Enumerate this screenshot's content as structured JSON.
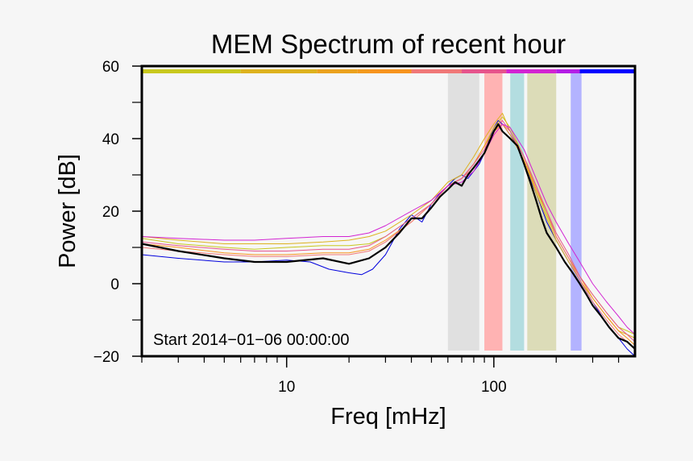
{
  "chart_data": {
    "type": "line",
    "title": "MEM Spectrum of recent hour",
    "xlabel": "Freq [mHz]",
    "ylabel": "Power [dB]",
    "x_scale": "log",
    "xlim": [
      2,
      480
    ],
    "ylim": [
      -20,
      60
    ],
    "x_ticks_labeled": [
      {
        "value": 10,
        "label": "10"
      },
      {
        "value": 100,
        "label": "100"
      }
    ],
    "x_ticks_minor": [
      2,
      3,
      4,
      5,
      6,
      7,
      8,
      9,
      20,
      30,
      40,
      50,
      60,
      70,
      80,
      90,
      200,
      300,
      400
    ],
    "y_ticks": [
      {
        "value": -20,
        "label": "−20"
      },
      {
        "value": 0,
        "label": "0"
      },
      {
        "value": 20,
        "label": "20"
      },
      {
        "value": 40,
        "label": "40"
      },
      {
        "value": 60,
        "label": "60"
      }
    ],
    "y_ticks_minor": [
      -10,
      10,
      30,
      50
    ],
    "annotation": "Start 2014−01−06 00:00:00",
    "bands": [
      {
        "from": 60,
        "to": 85,
        "color": "#e0e0e0"
      },
      {
        "from": 90,
        "to": 110,
        "color": "#ffb3b3"
      },
      {
        "from": 120,
        "to": 140,
        "color": "#b3dde0"
      },
      {
        "from": 145,
        "to": 200,
        "color": "#dcdcb8"
      },
      {
        "from": 235,
        "to": 265,
        "color": "#b3b3ff"
      }
    ],
    "color_bar": [
      {
        "from": 2,
        "to": 6,
        "color": "#c8c81e"
      },
      {
        "from": 6,
        "to": 14,
        "color": "#ddb21e"
      },
      {
        "from": 14,
        "to": 22,
        "color": "#eba21e"
      },
      {
        "from": 22,
        "to": 25,
        "color": "#f39a1e"
      },
      {
        "from": 25,
        "to": 40,
        "color": "#f7941e"
      },
      {
        "from": 40,
        "to": 70,
        "color": "#f07878"
      },
      {
        "from": 70,
        "to": 115,
        "color": "#e6548c"
      },
      {
        "from": 115,
        "to": 200,
        "color": "#d224d2"
      },
      {
        "from": 200,
        "to": 260,
        "color": "#b41ee6"
      },
      {
        "from": 260,
        "to": 480,
        "color": "#0000ff"
      }
    ],
    "series": [
      {
        "name": "mean",
        "color": "#000000",
        "width": 2.2,
        "x": [
          2,
          3,
          5,
          7,
          10,
          15,
          20,
          25,
          30,
          35,
          40,
          45,
          50,
          55,
          60,
          65,
          70,
          75,
          80,
          85,
          90,
          95,
          100,
          105,
          110,
          115,
          120,
          130,
          140,
          150,
          160,
          170,
          180,
          200,
          220,
          240,
          260,
          280,
          300,
          330,
          360,
          400,
          440,
          480
        ],
        "y": [
          11,
          9,
          7,
          6,
          6,
          7,
          5.5,
          7,
          10,
          14,
          18,
          18,
          21,
          24,
          26,
          28,
          27,
          30,
          32,
          34,
          36,
          39,
          42,
          44,
          42,
          41,
          40,
          38,
          33,
          28,
          23,
          18,
          14,
          10,
          6,
          3,
          0,
          -3,
          -6,
          -9,
          -12,
          -15,
          -16,
          -18
        ]
      },
      {
        "name": "blue",
        "color": "#0000dd",
        "width": 1,
        "x": [
          2,
          3,
          5,
          7,
          10,
          13,
          16,
          20,
          23,
          26,
          30,
          35,
          40,
          45,
          50,
          55,
          60,
          65,
          70,
          75,
          80,
          85,
          90,
          95,
          100,
          105,
          110,
          120,
          130,
          140,
          160,
          180,
          200,
          230,
          260,
          300,
          350,
          400,
          440,
          480
        ],
        "y": [
          8,
          7,
          6,
          6,
          6.5,
          6,
          4,
          3,
          2.5,
          4,
          8,
          15,
          19,
          17,
          22,
          25,
          27,
          29,
          30,
          29,
          31,
          33,
          36,
          40,
          43,
          45,
          44,
          41,
          38,
          33,
          25,
          17,
          12,
          6,
          1,
          -5,
          -11,
          -15,
          -18,
          -20
        ]
      },
      {
        "name": "yellow",
        "color": "#c8c81e",
        "width": 1,
        "x": [
          2,
          3,
          5,
          7,
          10,
          15,
          20,
          25,
          30,
          40,
          50,
          60,
          70,
          80,
          90,
          100,
          110,
          120,
          140,
          160,
          180,
          200,
          230,
          260,
          300,
          350,
          400,
          440,
          480
        ],
        "y": [
          12.5,
          11,
          10,
          9.5,
          10,
          10.5,
          10.5,
          11,
          13,
          18,
          22,
          27,
          29,
          33,
          38,
          43,
          46,
          43,
          35,
          26,
          19,
          13,
          7,
          2,
          -3,
          -8,
          -12,
          -13,
          -14
        ]
      },
      {
        "name": "gold",
        "color": "#ddb21e",
        "width": 1,
        "x": [
          2,
          3,
          5,
          7,
          10,
          15,
          20,
          25,
          30,
          40,
          50,
          60,
          70,
          80,
          90,
          100,
          110,
          120,
          140,
          160,
          180,
          200,
          230,
          260,
          300,
          350,
          400,
          440,
          480
        ],
        "y": [
          13,
          12,
          11,
          11,
          11,
          11.5,
          12,
          13,
          14.5,
          19,
          23,
          28,
          30,
          35,
          40,
          44,
          47,
          42,
          34,
          25,
          18,
          12,
          6,
          1,
          -4,
          -9,
          -13,
          -14,
          -15
        ]
      },
      {
        "name": "orange",
        "color": "#f7941e",
        "width": 1,
        "x": [
          2,
          3,
          5,
          7,
          10,
          15,
          20,
          25,
          30,
          40,
          50,
          60,
          70,
          80,
          90,
          100,
          110,
          120,
          140,
          160,
          180,
          200,
          230,
          260,
          300,
          350,
          400,
          440,
          480
        ],
        "y": [
          11,
          10,
          8.5,
          8,
          8,
          8.5,
          8.5,
          9.5,
          12,
          17,
          22,
          27,
          29,
          33,
          38,
          42,
          44,
          41,
          34,
          26,
          20,
          13,
          7,
          2,
          -4,
          -9,
          -13,
          -15,
          -17
        ]
      },
      {
        "name": "salmon",
        "color": "#f07878",
        "width": 1,
        "x": [
          2,
          3,
          5,
          7,
          10,
          15,
          20,
          25,
          30,
          40,
          50,
          60,
          70,
          80,
          90,
          100,
          110,
          120,
          140,
          160,
          180,
          200,
          230,
          260,
          300,
          350,
          400,
          440,
          480
        ],
        "y": [
          10,
          9,
          8,
          7.5,
          7.5,
          8,
          8,
          9,
          11.5,
          17,
          22,
          27,
          29,
          32,
          36,
          41,
          44,
          42,
          35,
          27,
          20,
          13,
          7,
          1,
          -5,
          -10,
          -14,
          -16,
          -18
        ]
      },
      {
        "name": "pink",
        "color": "#e6548c",
        "width": 1,
        "x": [
          2,
          3,
          5,
          7,
          10,
          15,
          20,
          25,
          30,
          40,
          50,
          60,
          70,
          80,
          90,
          100,
          110,
          120,
          140,
          160,
          180,
          200,
          230,
          260,
          300,
          350,
          400,
          440,
          480
        ],
        "y": [
          11.5,
          10.5,
          9.5,
          9,
          9,
          9.5,
          9.5,
          10.5,
          13,
          18,
          22,
          27,
          29,
          33,
          37,
          42,
          45,
          42,
          35,
          27,
          20,
          14,
          8,
          2,
          -3,
          -8,
          -12,
          -14,
          -16
        ]
      },
      {
        "name": "magenta",
        "color": "#d224d2",
        "width": 1,
        "x": [
          2,
          3,
          5,
          7,
          10,
          15,
          20,
          25,
          30,
          40,
          50,
          60,
          70,
          80,
          90,
          100,
          110,
          120,
          140,
          160,
          180,
          200,
          230,
          260,
          300,
          350,
          400,
          440,
          480
        ],
        "y": [
          13,
          12.5,
          12,
          12,
          12.5,
          13,
          13,
          14,
          16,
          20,
          23,
          27,
          28,
          31,
          36,
          41,
          44,
          43,
          37,
          29,
          22,
          17,
          11,
          6,
          0,
          -5,
          -9,
          -12,
          -14
        ]
      }
    ]
  }
}
